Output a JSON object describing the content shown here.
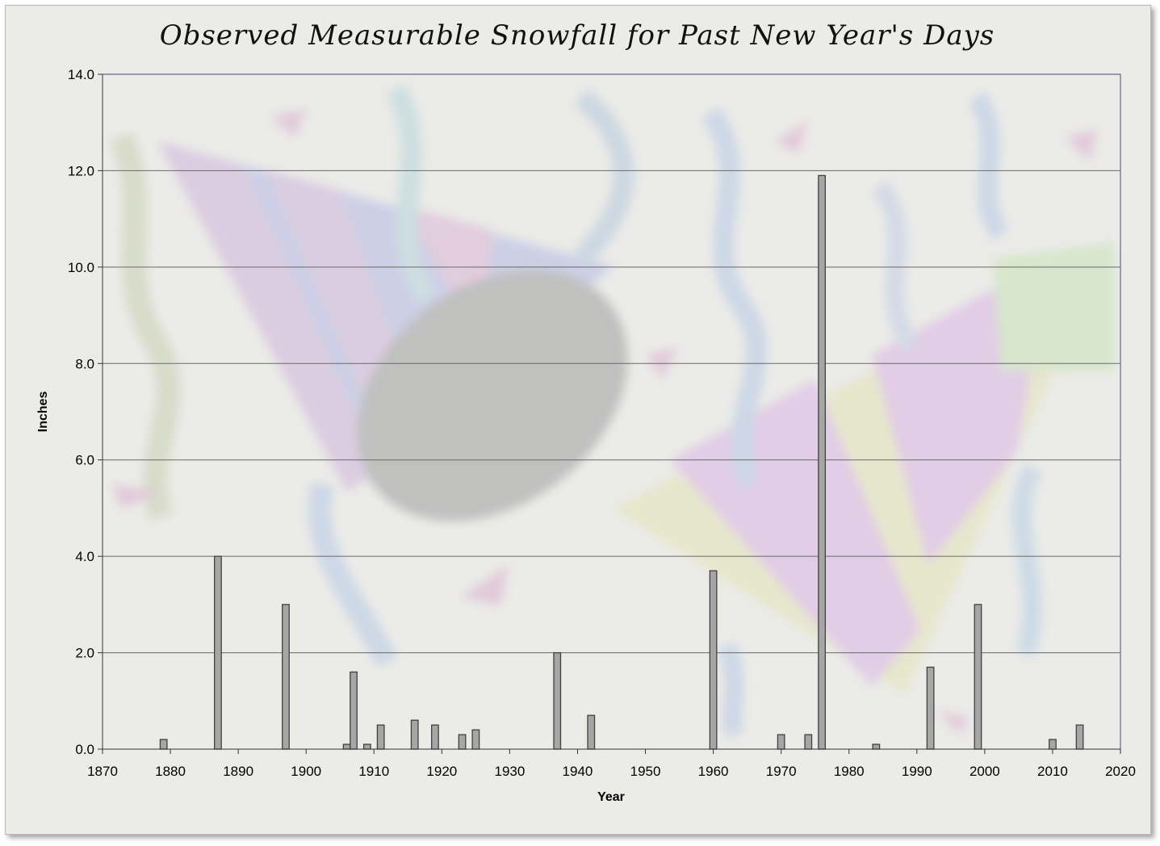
{
  "chart_data": {
    "type": "bar",
    "title": "Observed Measurable Snowfall for Past New Year's Days",
    "xlabel": "Year",
    "ylabel": "Inches",
    "xlim": [
      1870,
      2020
    ],
    "ylim": [
      0,
      14
    ],
    "x_ticks": [
      "1870",
      "1880",
      "1890",
      "1900",
      "1910",
      "1920",
      "1930",
      "1940",
      "1950",
      "1960",
      "1970",
      "1980",
      "1990",
      "2000",
      "2010",
      "2020"
    ],
    "y_ticks": [
      "0.0",
      "2.0",
      "4.0",
      "6.0",
      "8.0",
      "10.0",
      "12.0",
      "14.0"
    ],
    "grid": true,
    "legend": "none",
    "bar_color": "#a6a6a6",
    "bar_edge_color": "#404040",
    "points": [
      {
        "x": 1879,
        "y": 0.2
      },
      {
        "x": 1887,
        "y": 4.0
      },
      {
        "x": 1897,
        "y": 3.0
      },
      {
        "x": 1906,
        "y": 0.1
      },
      {
        "x": 1907,
        "y": 1.6
      },
      {
        "x": 1909,
        "y": 0.1
      },
      {
        "x": 1911,
        "y": 0.5
      },
      {
        "x": 1916,
        "y": 0.6
      },
      {
        "x": 1919,
        "y": 0.5
      },
      {
        "x": 1923,
        "y": 0.3
      },
      {
        "x": 1925,
        "y": 0.4
      },
      {
        "x": 1937,
        "y": 2.0
      },
      {
        "x": 1942,
        "y": 0.7
      },
      {
        "x": 1960,
        "y": 3.7
      },
      {
        "x": 1970,
        "y": 0.3
      },
      {
        "x": 1974,
        "y": 0.3
      },
      {
        "x": 1976,
        "y": 11.9
      },
      {
        "x": 1984,
        "y": 0.1
      },
      {
        "x": 1992,
        "y": 1.7
      },
      {
        "x": 1999,
        "y": 3.0
      },
      {
        "x": 2010,
        "y": 0.2
      },
      {
        "x": 2014,
        "y": 0.5
      }
    ]
  }
}
